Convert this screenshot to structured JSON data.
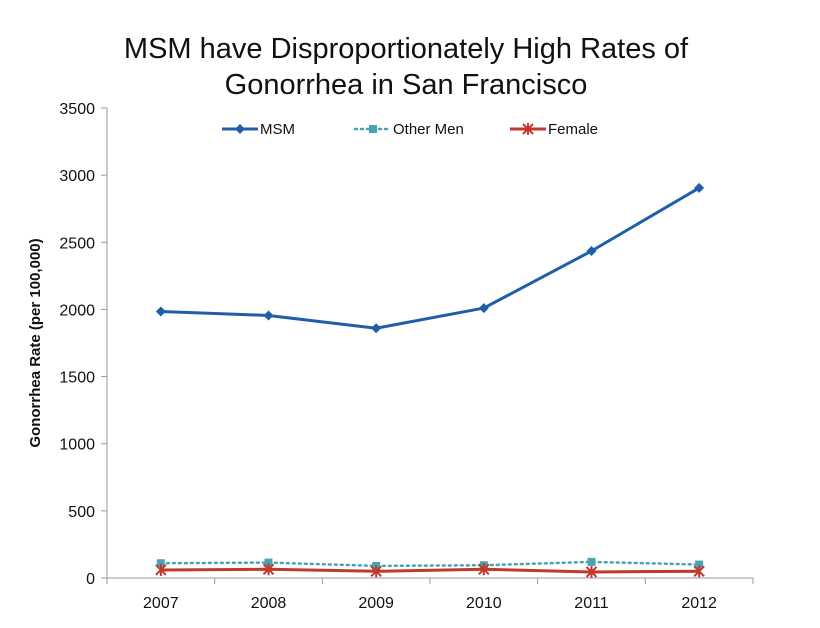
{
  "chart_data": {
    "type": "line",
    "title_lines": [
      "MSM have Disproportionately High Rates of",
      "Gonorrhea in San Francisco"
    ],
    "xlabel": "",
    "ylabel": "Gonorrhea Rate (per 100,000)",
    "x": [
      "2007",
      "2008",
      "2009",
      "2010",
      "2011",
      "2012"
    ],
    "ylim": [
      0,
      3500
    ],
    "yticks": [
      0,
      500,
      1000,
      1500,
      2000,
      2500,
      3000,
      3500
    ],
    "grid": false,
    "legend_position": "top",
    "series": [
      {
        "name": "MSM",
        "values": [
          1985,
          1955,
          1860,
          2010,
          2435,
          2905
        ],
        "color": "#1f5fa8",
        "marker": "diamond",
        "line": "solid"
      },
      {
        "name": "Other Men",
        "values": [
          110,
          115,
          90,
          95,
          120,
          100
        ],
        "color": "#4aa3b5",
        "marker": "square",
        "line": "dotted"
      },
      {
        "name": "Female",
        "values": [
          60,
          65,
          50,
          65,
          45,
          50
        ],
        "color": "#c0392b",
        "marker": "asterisk",
        "line": "solid"
      }
    ]
  }
}
